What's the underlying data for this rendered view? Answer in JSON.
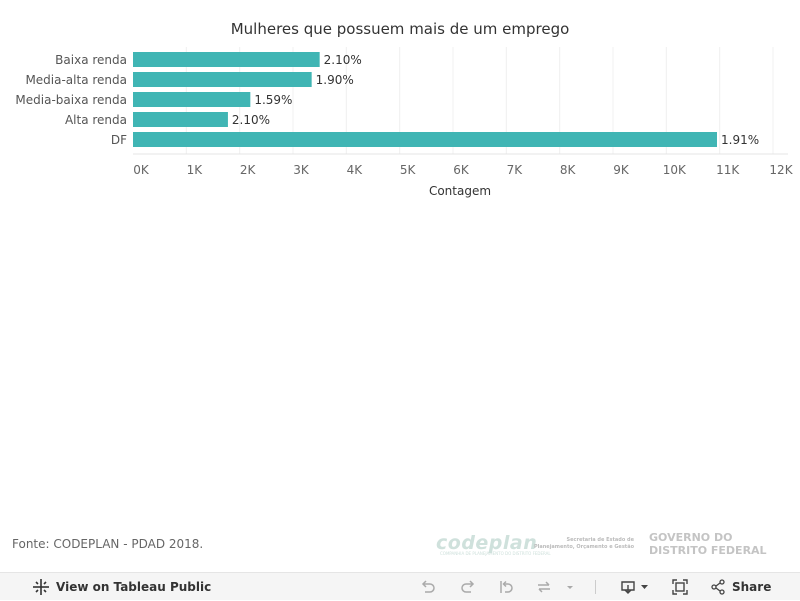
{
  "chart_data": {
    "type": "bar",
    "orientation": "horizontal",
    "title": "Mulheres que possuem mais de um emprego",
    "xlabel": "Contagem",
    "ylabel": "",
    "categories": [
      "Baixa renda",
      "Media-alta renda",
      "Media-baixa renda",
      "Alta renda",
      "DF"
    ],
    "values": [
      3500,
      3350,
      2200,
      1780,
      10950
    ],
    "data_labels": [
      "2.10%",
      "1.90%",
      "1.59%",
      "2.10%",
      "1.91%"
    ],
    "xlim": [
      0,
      12000
    ],
    "x_ticks": [
      0,
      1000,
      2000,
      3000,
      4000,
      5000,
      6000,
      7000,
      8000,
      9000,
      10000,
      11000,
      12000
    ],
    "x_tick_labels": [
      "0K",
      "1K",
      "2K",
      "3K",
      "4K",
      "5K",
      "6K",
      "7K",
      "8K",
      "9K",
      "10K",
      "11K",
      "12K"
    ],
    "bar_color": "#40b5b4",
    "grid": true,
    "legend": "none"
  },
  "footer": {
    "source": "Fonte: CODEPLAN - PDAD 2018."
  },
  "logos": {
    "codeplan": "codeplan",
    "codeplan_sub": "COMPANHIA DE PLANEJAMENTO DO DISTRITO FEDERAL",
    "secretaria": "Secretaria de Estado de Planejamento, Orçamento e Gestão",
    "governo": "GOVERNO DO DISTRITO FEDERAL"
  },
  "toolbar": {
    "view_label": "View on Tableau Public",
    "share_label": "Share",
    "icons": [
      "tableau-logo-icon",
      "undo-icon",
      "redo-icon",
      "revert-icon",
      "refresh-icon",
      "dropdown-icon",
      "download-icon",
      "fullscreen-icon",
      "share-icon"
    ]
  }
}
